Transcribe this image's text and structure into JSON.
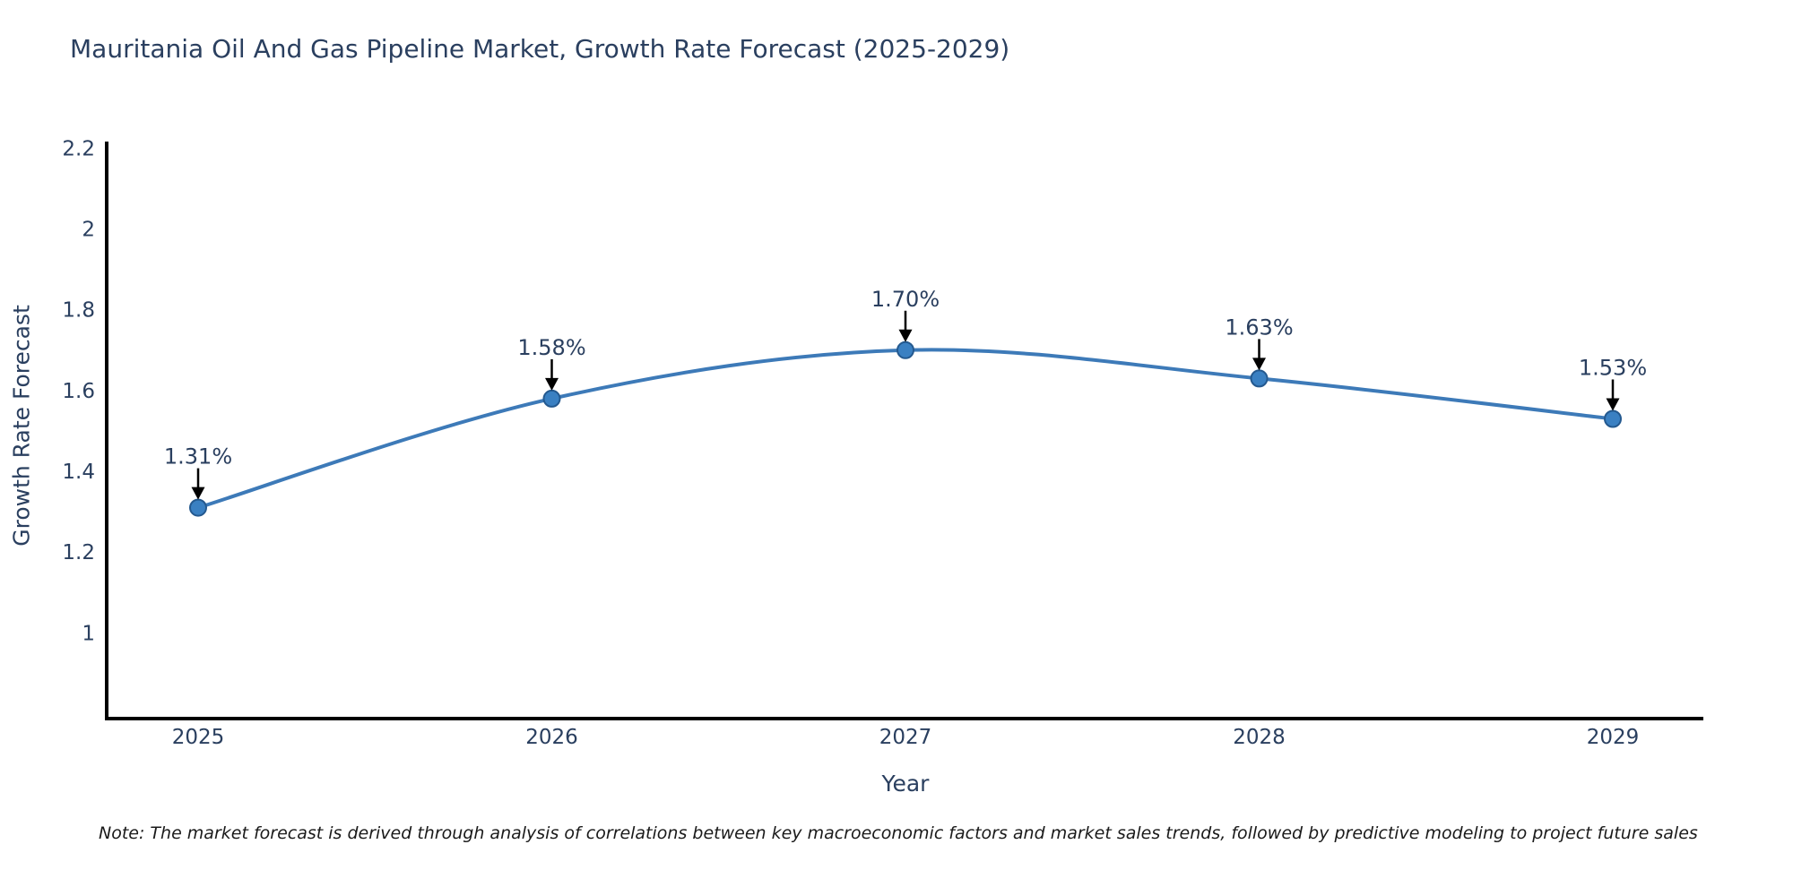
{
  "chart_data": {
    "type": "line",
    "title": "Mauritania Oil And Gas Pipeline Market, Growth Rate Forecast (2025-2029)",
    "xlabel": "Year",
    "ylabel": "Growth Rate Forecast",
    "categories": [
      "2025",
      "2026",
      "2027",
      "2028",
      "2029"
    ],
    "series": [
      {
        "name": "Growth Rate Forecast",
        "values": [
          1.31,
          1.58,
          1.7,
          1.63,
          1.53
        ]
      }
    ],
    "point_labels": [
      "1.31%",
      "1.58%",
      "1.70%",
      "1.63%",
      "1.53%"
    ],
    "ytick_values": [
      1,
      1.2,
      1.4,
      1.6,
      1.8,
      2,
      2.2
    ],
    "ytick_labels": [
      "1",
      "1.2",
      "1.4",
      "1.6",
      "1.8",
      "2",
      "2.2"
    ],
    "ylim": [
      0.788,
      2.223
    ],
    "grid": false,
    "legend": "none",
    "line_shape": "spline",
    "colors": {
      "line": "#3d7ab8",
      "marker_fill": "#3a80c2",
      "marker_edge": "#24598f",
      "axis": "#000000",
      "text": "#2a3f5f",
      "arrow": "#000000"
    },
    "note": "Note: The market forecast is derived through analysis of correlations between key macroeconomic factors and market sales trends, followed by predictive modeling to project future sales"
  }
}
